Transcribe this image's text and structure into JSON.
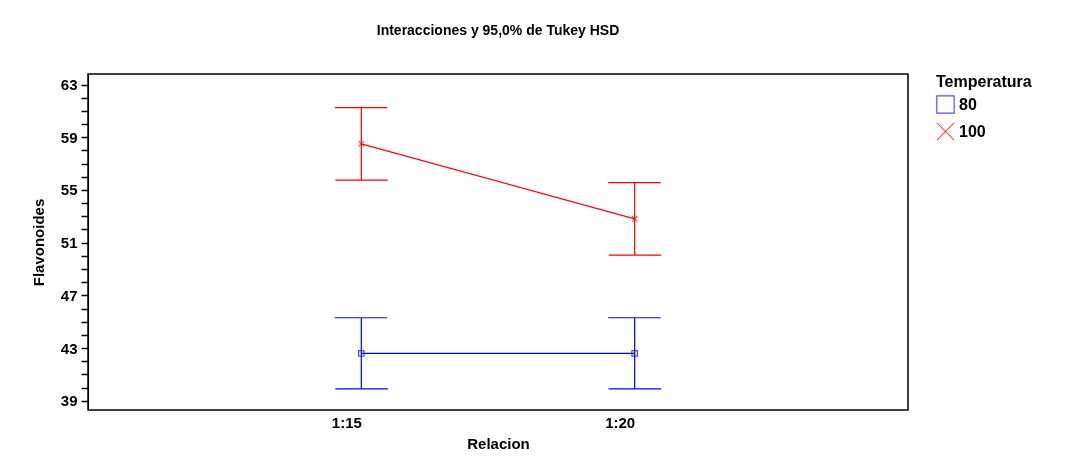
{
  "chart_data": {
    "type": "line",
    "title": "Interacciones y 95,0% de Tukey HSD",
    "xlabel": "Relacion",
    "ylabel": "Flavonoides",
    "legend_title": "Temperatura",
    "categories": [
      "1:15",
      "1:20"
    ],
    "series": [
      {
        "name": "80",
        "color": "#0000ff",
        "marker": "square",
        "values": [
          42.6,
          42.6
        ],
        "errors": [
          2.7,
          2.7
        ]
      },
      {
        "name": "100",
        "color": "#ff0000",
        "marker": "cross",
        "values": [
          58.5,
          52.8
        ],
        "errors": [
          2.75,
          2.75
        ]
      }
    ],
    "ylim": [
      38.3,
      63.8
    ],
    "yticks": [
      39,
      {
        "value": 40,
        "label": null
      },
      {
        "value": 41,
        "label": null
      },
      {
        "value": 42,
        "label": null
      },
      43,
      {
        "value": 44,
        "label": null
      },
      {
        "value": 45,
        "label": null
      },
      {
        "value": 46,
        "label": null
      },
      47,
      {
        "value": 48,
        "label": null
      },
      {
        "value": 49,
        "label": null
      },
      {
        "value": 50,
        "label": null
      },
      51,
      {
        "value": 52,
        "label": null
      },
      {
        "value": 53,
        "label": null
      },
      {
        "value": 54,
        "label": null
      },
      55,
      {
        "value": 56,
        "label": null
      },
      {
        "value": 57,
        "label": null
      },
      {
        "value": 58,
        "label": null
      },
      59,
      {
        "value": 60,
        "label": null
      },
      {
        "value": 61,
        "label": null
      },
      {
        "value": 62,
        "label": null
      },
      63
    ],
    "grid": false,
    "legend": "top right"
  }
}
